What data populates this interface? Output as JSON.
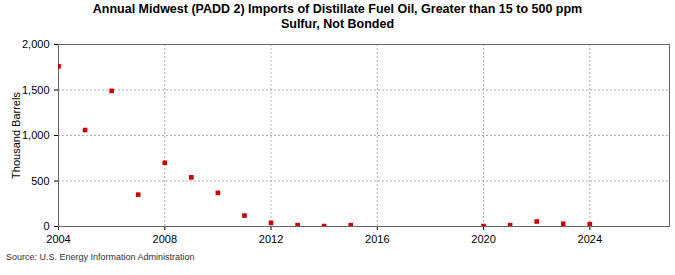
{
  "chart_data": {
    "type": "scatter",
    "title": "Annual Midwest (PADD 2) Imports of Distillate Fuel Oil, Greater than 15 to 500 ppm Sulfur, Not Bonded",
    "y_label": "Thousand Barrels",
    "source": "Source: U.S. Energy Information Administration",
    "x": [
      2004,
      2005,
      2006,
      2007,
      2008,
      2009,
      2010,
      2011,
      2012,
      2013,
      2014,
      2015,
      2020,
      2021,
      2022,
      2023,
      2024
    ],
    "values": [
      1760,
      1060,
      1490,
      350,
      700,
      540,
      370,
      120,
      40,
      15,
      5,
      15,
      5,
      15,
      55,
      30,
      25
    ],
    "color": "#cc0000",
    "marker": "square",
    "xlim": [
      2004,
      2027
    ],
    "xticks": [
      2004,
      2008,
      2012,
      2016,
      2020,
      2024
    ],
    "ylim": [
      0,
      2000
    ],
    "yticks": [
      0,
      500,
      {
        "value": 1000,
        "label": "1,000"
      },
      {
        "value": 1500,
        "label": "1,500"
      },
      {
        "value": 2000,
        "label": "2,000"
      }
    ],
    "grid": true
  }
}
